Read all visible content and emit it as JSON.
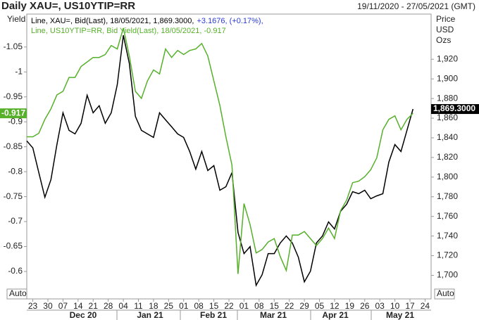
{
  "chart_data": {
    "type": "line",
    "title": "Daily XAU=, US10YTIP=RR",
    "subtitle": "19/11/2020 - 27/05/2021 (GMT)",
    "y_label": "Yield",
    "y2_label": [
      "Price",
      "USD",
      "Ozs"
    ],
    "auto_labels": [
      "Auto",
      "Auto"
    ],
    "x": [
      0,
      2,
      4,
      6,
      8,
      10,
      12,
      14,
      16,
      18,
      20,
      22,
      24,
      26,
      28,
      30,
      32,
      34,
      36,
      38,
      40,
      42,
      44,
      46,
      48,
      50,
      52,
      54,
      56,
      58,
      60,
      62,
      64,
      66,
      68,
      70,
      72,
      74,
      76,
      78,
      80,
      82,
      84,
      86,
      88,
      90,
      92,
      94,
      96,
      98,
      100,
      102,
      104,
      106,
      108,
      110,
      112,
      114,
      116,
      118,
      120,
      122,
      124,
      126,
      128
    ],
    "xlim": [
      0,
      134
    ],
    "xticks": [
      {
        "value": 2,
        "label": "23"
      },
      {
        "value": 7,
        "label": "30"
      },
      {
        "value": 12,
        "label": "07"
      },
      {
        "value": 17,
        "label": "14"
      },
      {
        "value": 22,
        "label": "21"
      },
      {
        "value": 27,
        "label": "28"
      },
      {
        "value": 32,
        "label": "04"
      },
      {
        "value": 37,
        "label": "11"
      },
      {
        "value": 42,
        "label": "18"
      },
      {
        "value": 47,
        "label": "25"
      },
      {
        "value": 52,
        "label": "01"
      },
      {
        "value": 57,
        "label": "08"
      },
      {
        "value": 62,
        "label": "15"
      },
      {
        "value": 67,
        "label": "22"
      },
      {
        "value": 72,
        "label": "01"
      },
      {
        "value": 77,
        "label": "08"
      },
      {
        "value": 82,
        "label": "15"
      },
      {
        "value": 87,
        "label": "22"
      },
      {
        "value": 92,
        "label": "29"
      },
      {
        "value": 97,
        "label": "05"
      },
      {
        "value": 102,
        "label": "12"
      },
      {
        "value": 107,
        "label": "19"
      },
      {
        "value": 112,
        "label": "26"
      },
      {
        "value": 117,
        "label": "03"
      },
      {
        "value": 122,
        "label": "10"
      },
      {
        "value": 127,
        "label": "17"
      },
      {
        "value": 132,
        "label": "24"
      }
    ],
    "x_groups": [
      "Dec 20",
      "Jan 21",
      "Feb 21",
      "Mar 21",
      "Apr 21",
      "May 21"
    ],
    "ylim": [
      -0.545,
      -1.116
    ],
    "yticks": [
      -1.05,
      -1,
      -0.95,
      -0.9,
      -0.85,
      -0.8,
      -0.75,
      -0.7,
      -0.65,
      -0.6
    ],
    "y2lim": [
      1676,
      1966
    ],
    "y2ticks": [
      {
        "value": 1700,
        "label": "1,700"
      },
      {
        "value": 1720,
        "label": "1,720"
      },
      {
        "value": 1740,
        "label": "1,740"
      },
      {
        "value": 1760,
        "label": "1,760"
      },
      {
        "value": 1780,
        "label": "1,780"
      },
      {
        "value": 1800,
        "label": "1,800"
      },
      {
        "value": 1820,
        "label": "1,820"
      },
      {
        "value": 1840,
        "label": "1,840"
      },
      {
        "value": 1860,
        "label": "1,860"
      },
      {
        "value": 1880,
        "label": "1,880"
      },
      {
        "value": 1900,
        "label": "1,900"
      },
      {
        "value": 1920,
        "label": "1,920"
      }
    ],
    "series": [
      {
        "name": "Line, XAU=, Bid(Last), 18/05/2021, 1,869.3000,",
        "change": "+3.1676, (+0.17%),",
        "change_color": "#2a3ad8",
        "color": "#000000",
        "axis": "y2",
        "last_label": "1,869.3000",
        "values": [
          1836.8,
          1829.7,
          1804.6,
          1779.5,
          1797.4,
          1833.2,
          1865.5,
          1847.6,
          1844.0,
          1854.8,
          1883.4,
          1865.5,
          1872.7,
          1854.8,
          1865.5,
          1894.2,
          1944.4,
          1915.7,
          1861.9,
          1847.6,
          1844.0,
          1840.4,
          1865.5,
          1858.3,
          1851.2,
          1844.0,
          1840.4,
          1826.1,
          1808.1,
          1826.1,
          1806.7,
          1811.7,
          1786.6,
          1790.2,
          1804.6,
          1743.6,
          1722.1,
          1729.3,
          1689.8,
          1700.6,
          1722.1,
          1722.1,
          1732.9,
          1740.1,
          1732.9,
          1718.5,
          1693.4,
          1704.2,
          1732.9,
          1740.1,
          1754.4,
          1747.2,
          1765.2,
          1772.3,
          1785.2,
          1783.1,
          1786.6,
          1778.0,
          1780.9,
          1783.1,
          1815.3,
          1833.2,
          1826.1,
          1847.6,
          1869.3
        ]
      },
      {
        "name": "Line, US10YTIP=RR, Bid Yield(Last), 18/05/2021, -0.917",
        "color": "#56b02a",
        "axis": "y",
        "last_label": "-0.917",
        "values": [
          -0.87,
          -0.87,
          -0.877,
          -0.905,
          -0.926,
          -0.954,
          -0.961,
          -0.989,
          -0.989,
          -1.011,
          -1.02,
          -1.029,
          -1.029,
          -1.035,
          -1.053,
          -1.046,
          -1.088,
          -1.032,
          -0.961,
          -0.947,
          -0.982,
          -1.004,
          -0.996,
          -1.046,
          -1.029,
          -1.043,
          -1.035,
          -1.043,
          -1.046,
          -1.057,
          -1.032,
          -0.982,
          -0.933,
          -0.87,
          -0.813,
          -0.595,
          -0.736,
          -0.694,
          -0.637,
          -0.644,
          -0.659,
          -0.666,
          -0.63,
          -0.602,
          -0.673,
          -0.673,
          -0.68,
          -0.666,
          -0.652,
          -0.666,
          -0.687,
          -0.666,
          -0.722,
          -0.743,
          -0.778,
          -0.781,
          -0.79,
          -0.804,
          -0.828,
          -0.884,
          -0.905,
          -0.912,
          -0.884,
          -0.905,
          -0.917
        ]
      }
    ]
  }
}
